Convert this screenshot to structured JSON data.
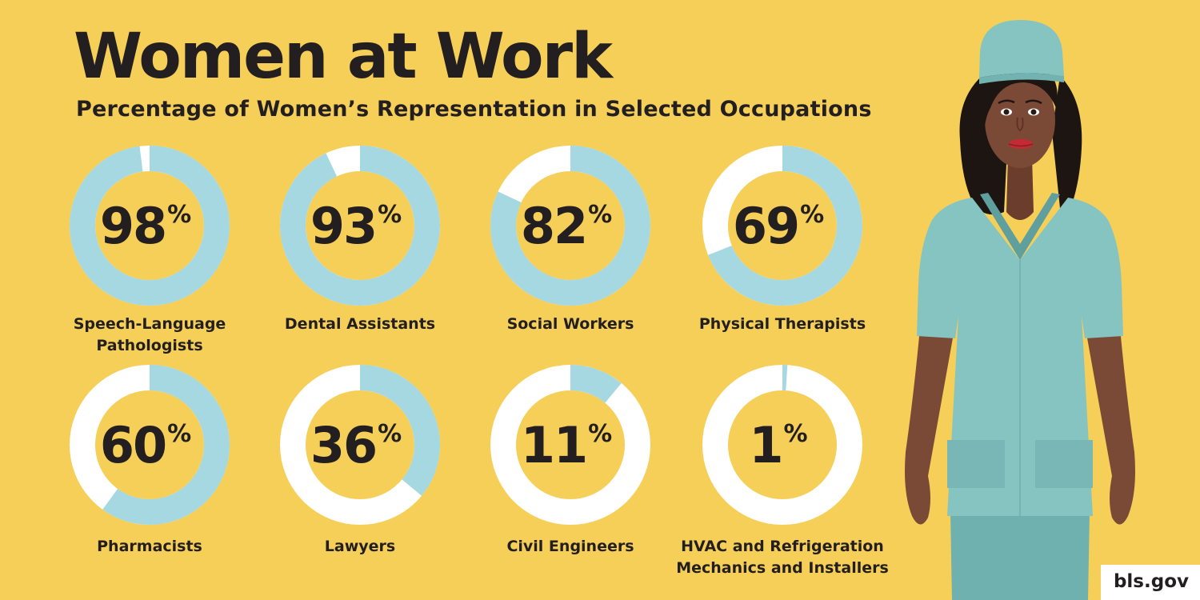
{
  "title": "Women at Work",
  "subtitle": "Percentage of Women’s Representation in Selected Occupations",
  "source": "bls.gov",
  "percent_sign": "%",
  "colors": {
    "background": "#f5cf58",
    "filled": "#a6d8e2",
    "empty": "#ffffff",
    "text": "#231f20",
    "scrubs": "#86c4c2",
    "skin": "#7b4a37"
  },
  "chart_data": {
    "type": "pie",
    "style": "donut",
    "unit": "%",
    "categories": [
      "Speech-Language Pathologists",
      "Dental Assistants",
      "Social Workers",
      "Physical Therapists",
      "Pharmacists",
      "Lawyers",
      "Civil Engineers",
      "HVAC and Refrigeration Mechanics and Installers"
    ],
    "values": [
      98,
      93,
      82,
      69,
      60,
      36,
      11,
      1
    ],
    "label_lines": [
      [
        "Speech-Language",
        "Pathologists"
      ],
      [
        "Dental Assistants"
      ],
      [
        "Social Workers"
      ],
      [
        "Physical Therapists"
      ],
      [
        "Pharmacists"
      ],
      [
        "Lawyers"
      ],
      [
        "Civil Engineers"
      ],
      [
        "HVAC and Refrigeration",
        "Mechanics and Installers"
      ]
    ],
    "ylim": [
      0,
      100
    ]
  }
}
